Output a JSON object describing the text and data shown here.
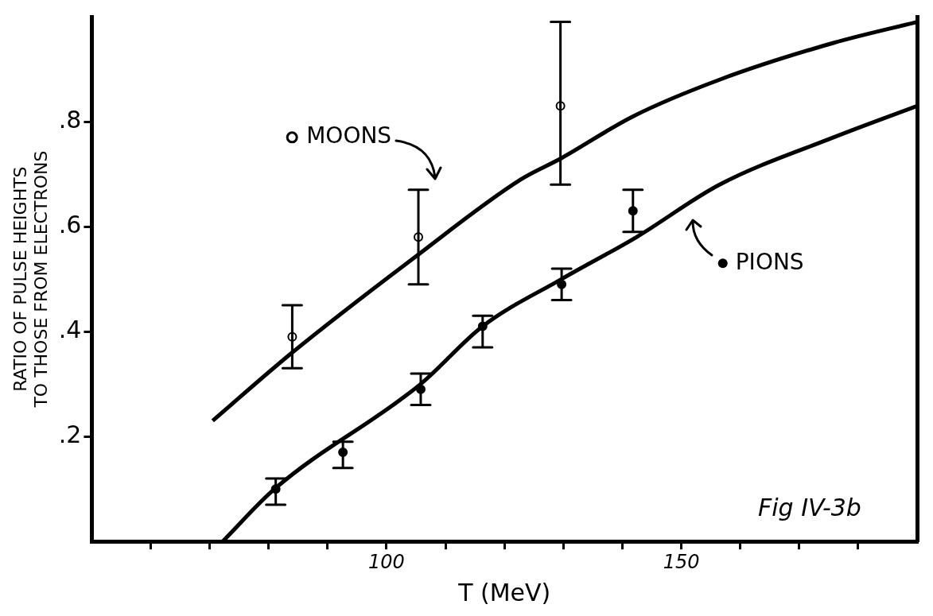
{
  "chart_data": {
    "type": "scatter",
    "xlabel": "T (MeV)",
    "ylabel": "RATIO OF PULSE HEIGHTS\nTO THOSE FROM ELECTRONS",
    "xlim": [
      50,
      190
    ],
    "ylim": [
      0,
      1
    ],
    "xticks": [
      {
        "value": 60,
        "label": null
      },
      {
        "value": 70,
        "label": null
      },
      {
        "value": 80,
        "label": null
      },
      {
        "value": 90,
        "label": null
      },
      100,
      {
        "value": 110,
        "label": null
      },
      {
        "value": 120,
        "label": null
      },
      {
        "value": 130,
        "label": null
      },
      {
        "value": 140,
        "label": null
      },
      150,
      {
        "value": 160,
        "label": null
      },
      {
        "value": 170,
        "label": null
      },
      {
        "value": 180,
        "label": null
      }
    ],
    "yticks": [
      {
        "value": 0.2,
        "label": ".2"
      },
      {
        "value": 0.4,
        "label": ".4"
      },
      {
        "value": 0.6,
        "label": ".6"
      },
      {
        "value": 0.8,
        "label": ".8"
      }
    ],
    "grid": false,
    "legend": "top left",
    "series": [
      {
        "name": "MOONS",
        "marker": "circle",
        "color": "#000000",
        "x": [
          84,
          105.4,
          129.5
        ],
        "values": [
          0.39,
          0.58,
          0.83
        ],
        "errors": [
          [
            0.33,
            0.45
          ],
          [
            0.49,
            0.67
          ],
          [
            0.68,
            0.99
          ]
        ]
      },
      {
        "name": "PIONS",
        "marker": "circle",
        "color": "#000000",
        "x": [
          81.2,
          92.6,
          105.8,
          116.3,
          129.7,
          141.8
        ],
        "values": [
          0.1,
          0.17,
          0.29,
          0.41,
          0.49,
          0.63
        ],
        "errors": [
          [
            0.07,
            0.12
          ],
          [
            0.14,
            0.19
          ],
          [
            0.26,
            0.32
          ],
          [
            0.37,
            0.43
          ],
          [
            0.46,
            0.52
          ],
          [
            0.59,
            0.67
          ]
        ]
      },
      {
        "type": "line",
        "marker": "none",
        "color": "#000000",
        "x": [
          70.5,
          84,
          104.6,
          122.8,
          129.6,
          141.8,
          156.5,
          175.8,
          190
        ],
        "values": [
          0.23,
          0.36,
          0.54,
          0.69,
          0.73,
          0.81,
          0.88,
          0.95,
          0.99
        ]
      },
      {
        "type": "line",
        "marker": "none",
        "color": "#000000",
        "x": [
          72.2,
          81,
          105.8,
          116.3,
          129.7,
          142.4,
          156.5,
          175.8,
          190
        ],
        "values": [
          0,
          0.1,
          0.3,
          0.41,
          0.5,
          0.58,
          0.68,
          0.77,
          0.83
        ]
      }
    ],
    "annotations": [
      "Fig IV-3b"
    ]
  }
}
